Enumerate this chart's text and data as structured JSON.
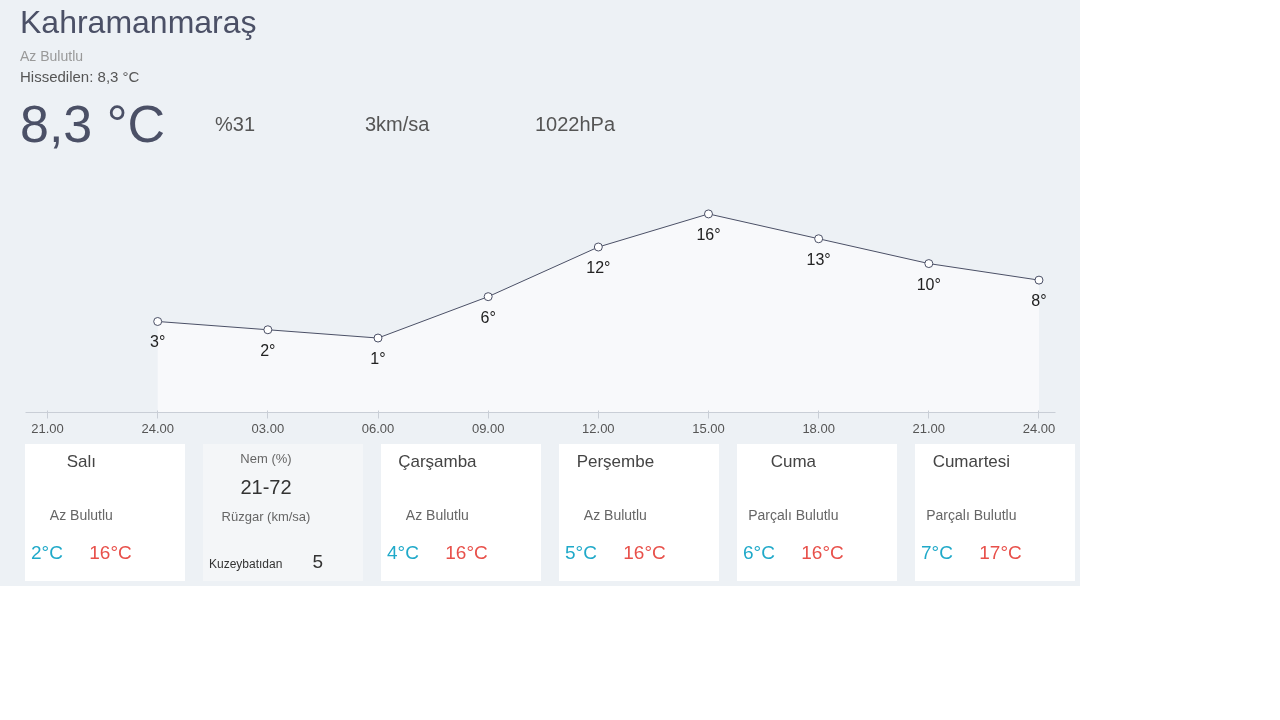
{
  "chart_data": {
    "type": "area",
    "title": "Kahramanmaraş",
    "categories": [
      "21.00",
      "24.00",
      "03.00",
      "06.00",
      "09.00",
      "12.00",
      "15.00",
      "18.00",
      "21.00",
      "24.00"
    ],
    "values": [
      null,
      3,
      2,
      1,
      6,
      12,
      16,
      13,
      10,
      8
    ],
    "value_labels": [
      null,
      "3°",
      "2°",
      "1°",
      "6°",
      "12°",
      "16°",
      "13°",
      "10°",
      "8°"
    ],
    "color": "#4b5066",
    "marker": "circle",
    "grid": false,
    "annotations": [
      "Az Bulutlu",
      "Hissedilen: 8,3 °C",
      "8,3 °C",
      "%31",
      "3km/sa",
      "1022hPa",
      "Salı",
      "Az Bulutlu",
      "2°C",
      "16°C",
      "Nem (%)",
      "21-72",
      "Rüzgar (km/sa)",
      "Kuzeybatıdan",
      "5",
      "Çarşamba",
      "Az Bulutlu",
      "4°C",
      "16°C",
      "Perşembe",
      "Az Bulutlu",
      "5°C",
      "16°C",
      "Cuma",
      "Parçalı Bulutlu",
      "6°C",
      "16°C",
      "Cumartesi",
      "Parçalı Bulutlu",
      "7°C",
      "17°C"
    ]
  }
}
